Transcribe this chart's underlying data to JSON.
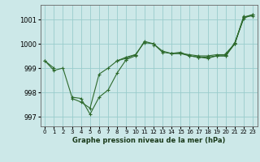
{
  "title": "Graphe pression niveau de la mer (hPa)",
  "background_color": "#cce8e8",
  "grid_color": "#99cccc",
  "line_color": "#2d6a2d",
  "xlim": [
    -0.5,
    23.5
  ],
  "ylim": [
    996.6,
    1001.6
  ],
  "yticks": [
    997,
    998,
    999,
    1000,
    1001
  ],
  "xticks": [
    0,
    1,
    2,
    3,
    4,
    5,
    6,
    7,
    8,
    9,
    10,
    11,
    12,
    13,
    14,
    15,
    16,
    17,
    18,
    19,
    20,
    21,
    22,
    23
  ],
  "series": [
    [
      999.3,
      998.9,
      999.0,
      997.8,
      997.75,
      997.1,
      997.8,
      998.1,
      998.8,
      999.35,
      999.5,
      1000.1,
      1000.0,
      999.7,
      999.6,
      999.6,
      999.55,
      999.5,
      999.5,
      999.55,
      999.55,
      1000.0,
      1001.1,
      1001.15
    ],
    [
      null,
      null,
      null,
      997.75,
      997.6,
      997.35,
      998.75,
      999.0,
      999.3,
      999.4,
      999.55,
      1000.05,
      1000.0,
      999.65,
      999.6,
      999.6,
      999.5,
      999.45,
      999.45,
      999.5,
      999.5,
      1000.0,
      1001.1,
      1001.2
    ],
    [
      999.3,
      999.0,
      null,
      null,
      null,
      null,
      null,
      null,
      999.3,
      999.45,
      999.55,
      null,
      null,
      null,
      999.6,
      999.65,
      999.5,
      999.45,
      999.4,
      999.5,
      999.5,
      1000.05,
      1001.05,
      1001.2
    ],
    [
      null,
      null,
      null,
      null,
      null,
      null,
      null,
      null,
      null,
      999.35,
      null,
      null,
      999.95,
      null,
      null,
      null,
      null,
      null,
      null,
      null,
      999.6,
      1000.0,
      1001.15,
      null
    ]
  ]
}
